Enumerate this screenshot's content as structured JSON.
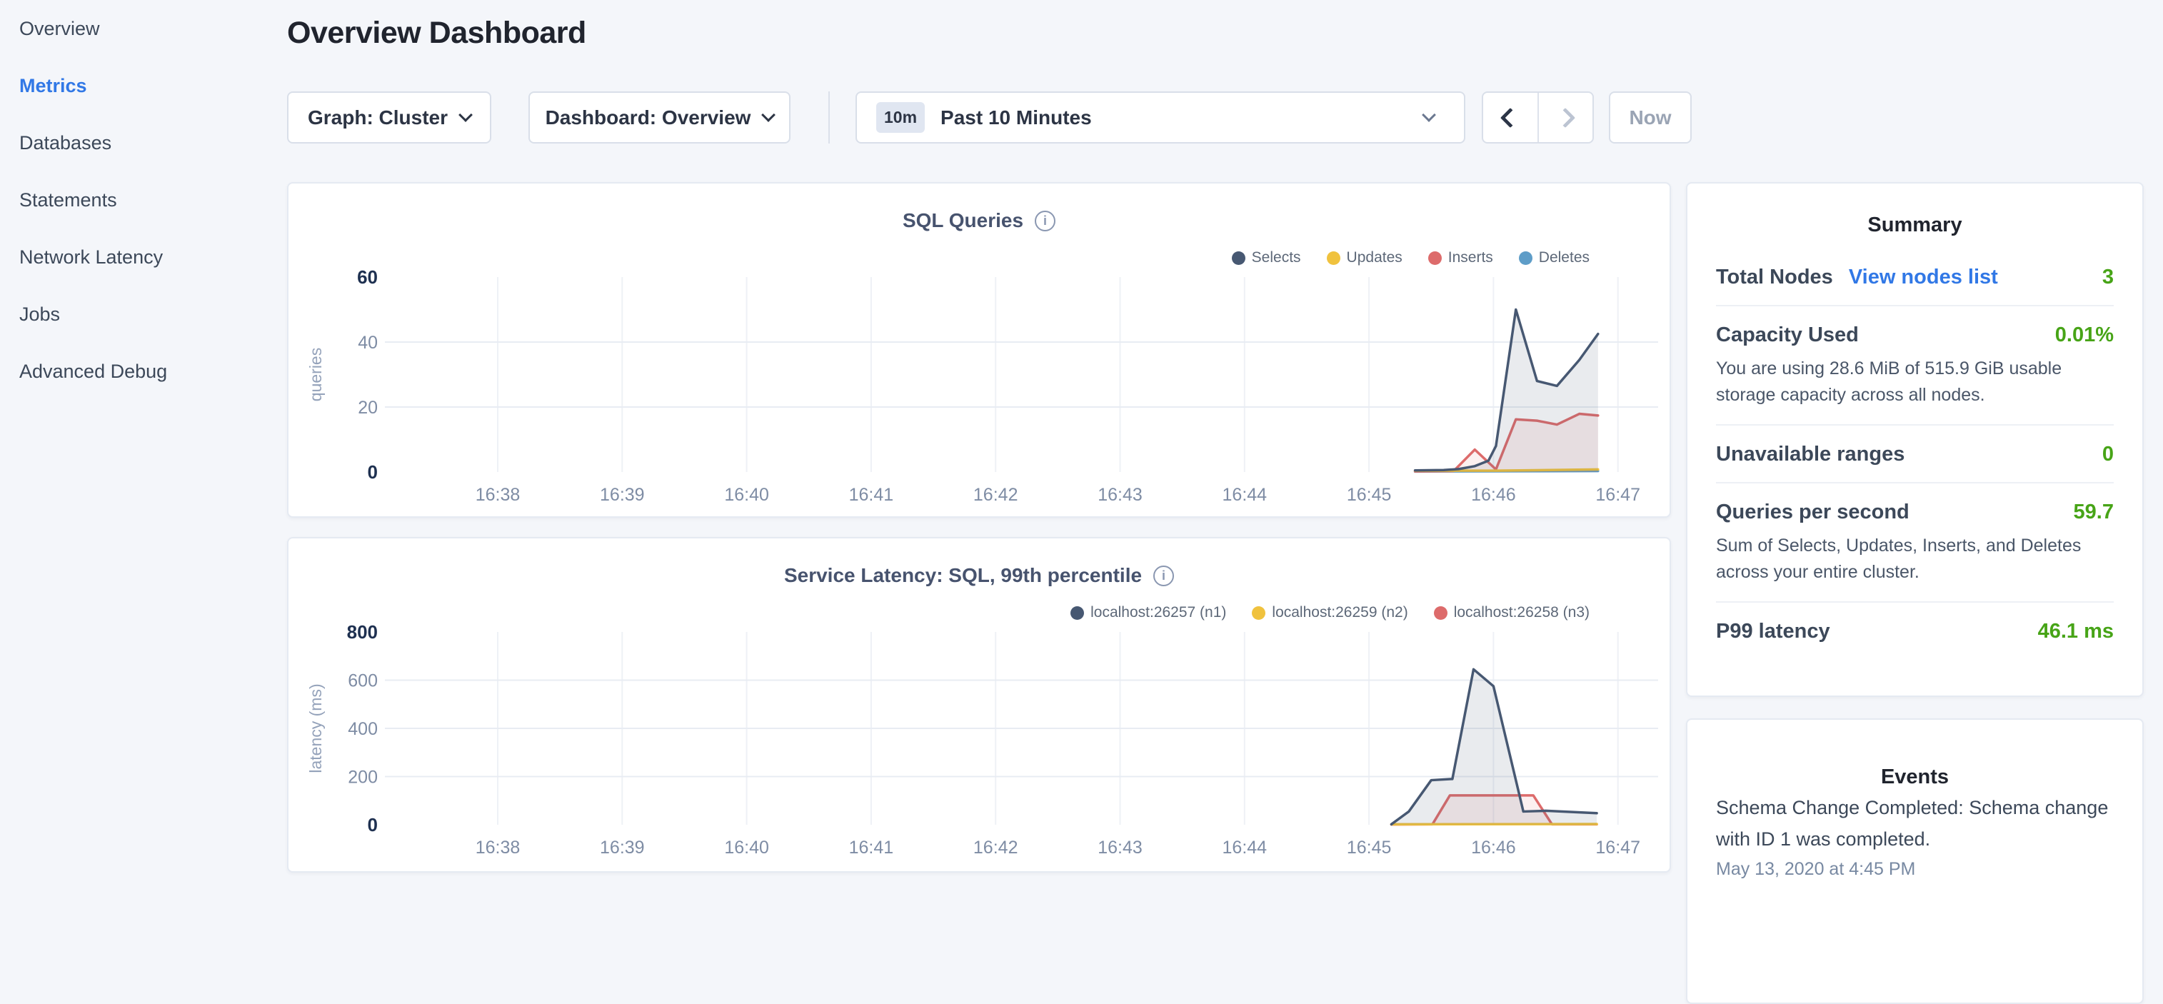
{
  "header": {
    "title": "Overview Dashboard"
  },
  "sidebar": {
    "items": [
      {
        "label": "Overview",
        "active": false
      },
      {
        "label": "Metrics",
        "active": true
      },
      {
        "label": "Databases",
        "active": false
      },
      {
        "label": "Statements",
        "active": false
      },
      {
        "label": "Network Latency",
        "active": false
      },
      {
        "label": "Jobs",
        "active": false
      },
      {
        "label": "Advanced Debug",
        "active": false
      }
    ]
  },
  "toolbar": {
    "graph_dropdown_label": "Graph: Cluster",
    "dashboard_dropdown_label": "Dashboard: Overview",
    "time_window_badge": "10m",
    "time_window_label": "Past 10 Minutes",
    "now_button_label": "Now"
  },
  "colors": {
    "accent_blue": "#3178e6",
    "value_green": "#47a417",
    "series_navy": "#475872",
    "series_yellow": "#f0c23e",
    "series_red": "#dd6b6b",
    "series_blue": "#5e9dc8"
  },
  "chart_data": [
    {
      "type": "area",
      "title": "SQL Queries",
      "ylabel": "queries",
      "ylim": [
        0,
        60
      ],
      "yticks": [
        0,
        20,
        40,
        60
      ],
      "xticks": [
        "16:38",
        "16:39",
        "16:40",
        "16:41",
        "16:42",
        "16:43",
        "16:44",
        "16:45",
        "16:46",
        "16:47"
      ],
      "x_unit": "minutes after 16:38",
      "grid": true,
      "legend_position": "top-right",
      "series": [
        {
          "name": "Selects",
          "color": "#475872",
          "fill": "rgba(71,88,114,0.12)",
          "points": [
            [
              7.37,
              0.5
            ],
            [
              7.6,
              0.6
            ],
            [
              7.72,
              0.9
            ],
            [
              7.85,
              1.8
            ],
            [
              7.96,
              3.5
            ],
            [
              8.02,
              8
            ],
            [
              8.18,
              50
            ],
            [
              8.35,
              28
            ],
            [
              8.51,
              26.5
            ],
            [
              8.69,
              34.5
            ],
            [
              8.84,
              42.5
            ]
          ]
        },
        {
          "name": "Updates",
          "color": "#f0c23e",
          "fill": null,
          "points": [
            [
              7.37,
              0.4
            ],
            [
              8.02,
              0.4
            ],
            [
              8.84,
              0.8
            ]
          ]
        },
        {
          "name": "Inserts",
          "color": "#dd6b6b",
          "fill": "rgba(221,107,107,0.10)",
          "points": [
            [
              7.37,
              0.2
            ],
            [
              7.68,
              0.3
            ],
            [
              7.85,
              6.9
            ],
            [
              8.02,
              0.8
            ],
            [
              8.18,
              16.2
            ],
            [
              8.35,
              15.8
            ],
            [
              8.51,
              14.6
            ],
            [
              8.69,
              17.9
            ],
            [
              8.84,
              17.4
            ]
          ]
        },
        {
          "name": "Deletes",
          "color": "#5e9dc8",
          "fill": null,
          "points": [
            [
              7.37,
              0.15
            ],
            [
              8.84,
              0.3
            ]
          ]
        }
      ]
    },
    {
      "type": "area",
      "title": "Service Latency: SQL, 99th percentile",
      "ylabel": "latency (ms)",
      "ylim": [
        0,
        800
      ],
      "yticks": [
        0,
        200,
        400,
        600,
        800
      ],
      "xticks": [
        "16:38",
        "16:39",
        "16:40",
        "16:41",
        "16:42",
        "16:43",
        "16:44",
        "16:45",
        "16:46",
        "16:47"
      ],
      "x_unit": "minutes after 16:38",
      "grid": true,
      "legend_position": "top-right",
      "series": [
        {
          "name": "localhost:26257 (n1)",
          "color": "#475872",
          "fill": "rgba(71,88,114,0.12)",
          "points": [
            [
              7.18,
              2
            ],
            [
              7.32,
              55
            ],
            [
              7.5,
              185
            ],
            [
              7.67,
              190
            ],
            [
              7.84,
              645
            ],
            [
              8.0,
              575
            ],
            [
              8.24,
              55
            ],
            [
              8.42,
              58
            ],
            [
              8.83,
              48
            ]
          ]
        },
        {
          "name": "localhost:26259 (n2)",
          "color": "#f0c23e",
          "fill": null,
          "points": [
            [
              7.18,
              2
            ],
            [
              8.83,
              3
            ]
          ]
        },
        {
          "name": "localhost:26258 (n3)",
          "color": "#dd6b6b",
          "fill": "rgba(221,107,107,0.10)",
          "points": [
            [
              7.18,
              1
            ],
            [
              7.51,
              2
            ],
            [
              7.65,
              122
            ],
            [
              8.32,
              122
            ],
            [
              8.47,
              2
            ],
            [
              8.83,
              2
            ]
          ]
        }
      ]
    }
  ],
  "summary": {
    "title": "Summary",
    "rows": [
      {
        "label": "Total Nodes",
        "link": "View nodes list",
        "value": "3",
        "sub": null
      },
      {
        "label": "Capacity Used",
        "link": null,
        "value": "0.01%",
        "sub": "You are using 28.6 MiB of 515.9 GiB usable storage capacity across all nodes."
      },
      {
        "label": "Unavailable ranges",
        "link": null,
        "value": "0",
        "sub": null
      },
      {
        "label": "Queries per second",
        "link": null,
        "value": "59.7",
        "sub": "Sum of Selects, Updates, Inserts, and Deletes across your entire cluster."
      },
      {
        "label": "P99 latency",
        "link": null,
        "value": "46.1 ms",
        "sub": null
      }
    ]
  },
  "events": {
    "title": "Events",
    "items": [
      {
        "text": "Schema Change Completed: Schema change with ID 1 was completed.",
        "timestamp": "May 13, 2020 at 4:45 PM"
      }
    ]
  }
}
